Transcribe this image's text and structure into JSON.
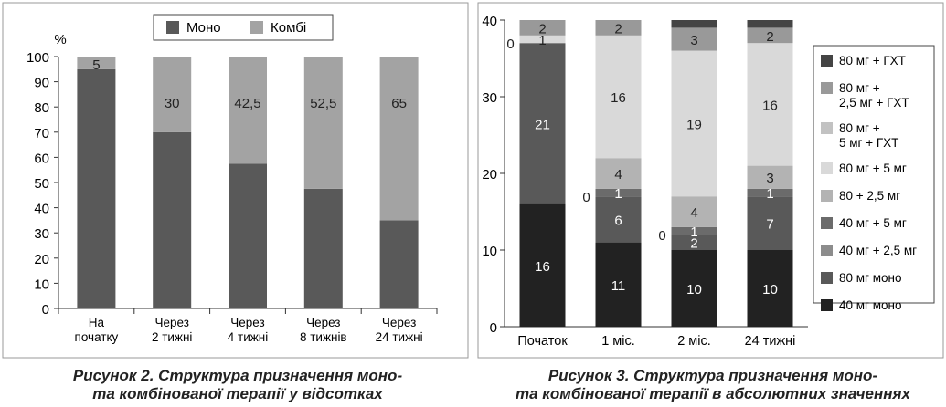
{
  "chart_data": [
    {
      "type": "bar",
      "stacked": true,
      "ylabel": "%",
      "ylim": [
        0,
        100
      ],
      "yticks": [
        0,
        10,
        20,
        30,
        40,
        50,
        60,
        70,
        80,
        90,
        100
      ],
      "legend_placement": "top-center",
      "categories": [
        "На\nпочатку",
        "Через\n2 тижні",
        "Через\n4 тижні",
        "Через\n8 тижнів",
        "Через\n24 тижні"
      ],
      "series": [
        {
          "name": "Моно",
          "color": "#595959",
          "values": [
            95,
            70,
            57.5,
            47.5,
            35
          ],
          "labels": [
            "",
            "",
            "",
            "",
            ""
          ]
        },
        {
          "name": "Комбі",
          "color": "#a3a3a3",
          "values": [
            5,
            30,
            42.5,
            52.5,
            65
          ],
          "labels": [
            "5",
            "30",
            "42,5",
            "52,5",
            "65"
          ]
        }
      ],
      "caption": [
        "Рисунок 2. Структура призначення моно-",
        "та комбінованої терапії у відсотках"
      ]
    },
    {
      "type": "bar",
      "stacked": true,
      "ylim": [
        0,
        40
      ],
      "yticks": [
        0,
        10,
        20,
        30,
        40
      ],
      "legend_placement": "right",
      "categories": [
        "Початок",
        "1 міс.",
        "2 міс.",
        "24 тижні"
      ],
      "series": [
        {
          "name": "40 мг моно",
          "color": "#222222",
          "values": [
            16,
            11,
            10,
            10
          ],
          "labels": [
            "16",
            "11",
            "10",
            "10"
          ]
        },
        {
          "name": "80 мг моно",
          "color": "#595959",
          "values": [
            21,
            6,
            2,
            7
          ],
          "labels": [
            "21",
            "6",
            "2",
            "7"
          ]
        },
        {
          "name": "40 мг + 2,5 мг",
          "color": "#8c8c8c",
          "values": [
            0,
            0,
            0,
            0
          ],
          "labels": [
            "",
            "0",
            "0",
            ""
          ]
        },
        {
          "name": "40 мг + 5 мг",
          "color": "#6b6b6b",
          "values": [
            0,
            1,
            1,
            1
          ],
          "labels": [
            "",
            "1",
            "1",
            "1"
          ]
        },
        {
          "name": "80 + 2,5 мг",
          "color": "#b3b3b3",
          "values": [
            0,
            4,
            4,
            3
          ],
          "labels": [
            "0",
            "4",
            "4",
            "3"
          ]
        },
        {
          "name": "80 мг + 5 мг",
          "color": "#d9d9d9",
          "values": [
            1,
            16,
            19,
            16
          ],
          "labels": [
            "1",
            "16",
            "19",
            "16"
          ]
        },
        {
          "name": "80 мг +\n5 мг + ГХТ",
          "color": "#c2c2c2",
          "values": [
            0,
            0,
            0,
            0
          ],
          "labels": [
            "",
            "",
            "",
            ""
          ]
        },
        {
          "name": "80 мг +\n2,5 мг + ГХТ",
          "color": "#999999",
          "values": [
            2,
            2,
            3,
            2
          ],
          "labels": [
            "2",
            "2",
            "3",
            "2"
          ]
        },
        {
          "name": "80 мг + ГХТ",
          "color": "#444444",
          "values": [
            0,
            0,
            1,
            1
          ],
          "labels": [
            "",
            "",
            "",
            ""
          ]
        }
      ],
      "caption": [
        "Рисунок 3. Структура призначення моно-",
        "та комбінованої терапії в абсолютних значеннях"
      ]
    }
  ]
}
